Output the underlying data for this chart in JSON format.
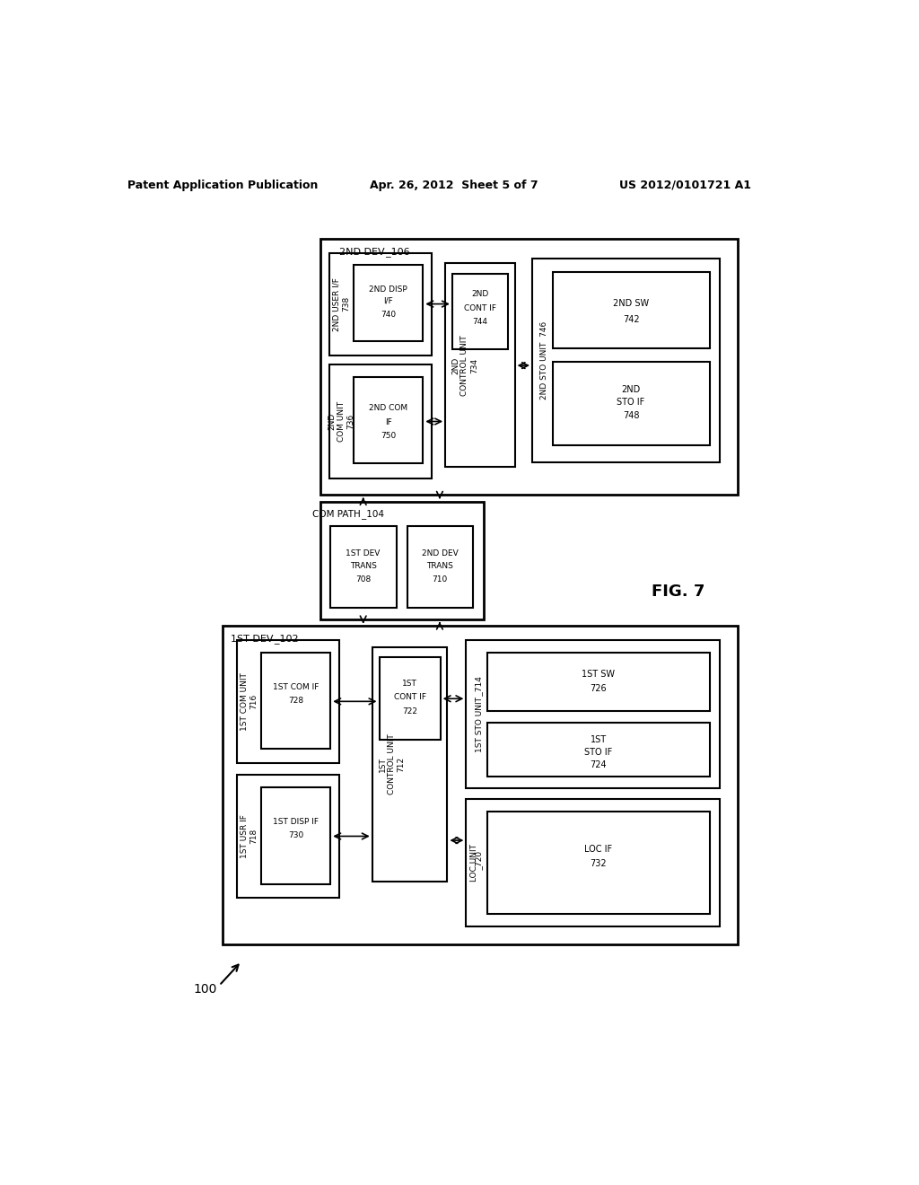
{
  "header_left": "Patent Application Publication",
  "header_mid": "Apr. 26, 2012  Sheet 5 of 7",
  "header_right": "US 2012/0101721 A1",
  "fig_label": "FIG. 7",
  "ref_label": "100",
  "bg_color": "#ffffff",
  "box_color": "#000000",
  "text_color": "#000000"
}
